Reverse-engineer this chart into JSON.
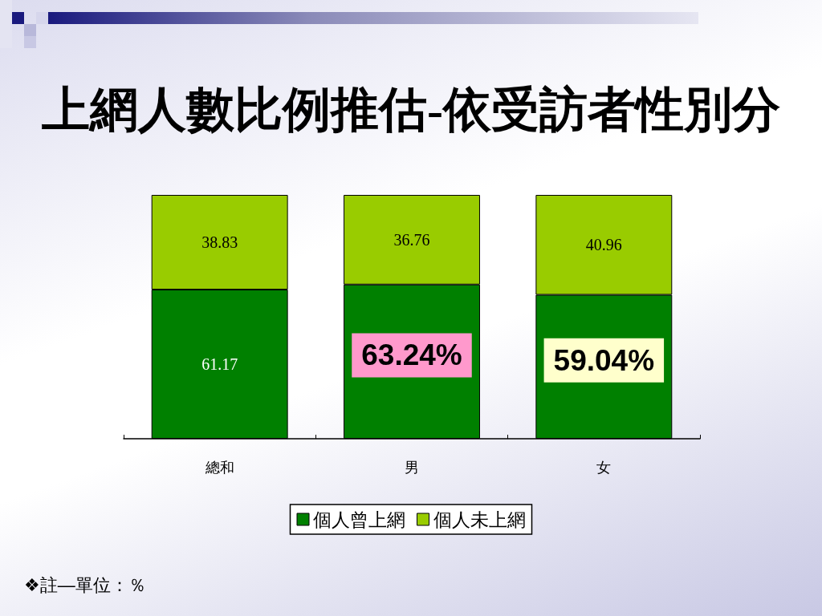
{
  "chart_data": {
    "type": "bar",
    "title": "上網人數比例推估-依受訪者性別分",
    "categories": [
      "總和",
      "男",
      "女"
    ],
    "series": [
      {
        "name": "個人曾上網",
        "color": "#008000",
        "values": [
          61.17,
          63.24,
          59.04
        ],
        "value_labels": [
          "61.17",
          "63.24%",
          "59.04%"
        ]
      },
      {
        "name": "個人未上網",
        "color": "#99cc00",
        "values": [
          38.83,
          36.76,
          40.96
        ],
        "value_labels": [
          "38.83",
          "36.76",
          "40.96"
        ]
      }
    ],
    "stacked": true,
    "ylim": [
      0,
      100
    ],
    "tick_labels": "x",
    "legend": "bottom",
    "annotations": [
      "❖註—單位：％"
    ]
  }
}
